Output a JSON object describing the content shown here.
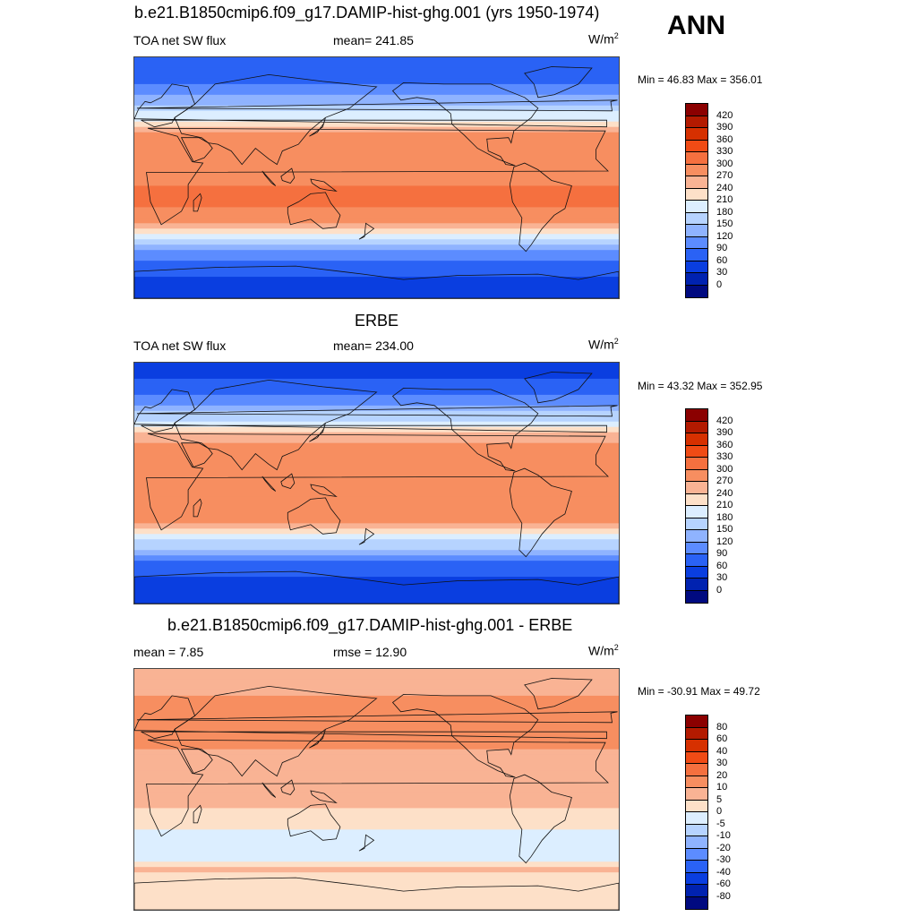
{
  "header": {
    "season": "ANN"
  },
  "panels": [
    {
      "title": "b.e21.B1850cmip6.f09_g17.DAMIP-hist-ghg.001 (yrs 1950-1974)",
      "left_text": "TOA net SW flux",
      "center_text": "mean= 241.85",
      "units": "W/m",
      "units_sup": "2",
      "minmax": "Min =  46.83 Max = 356.01",
      "colorbar": {
        "labels": [
          "420",
          "390",
          "360",
          "330",
          "300",
          "270",
          "240",
          "210",
          "180",
          "150",
          "120",
          "90",
          "60",
          "30",
          "0"
        ],
        "colors": [
          "#8b0000",
          "#b31a00",
          "#d63000",
          "#f04b15",
          "#f5703f",
          "#f78e60",
          "#f9b394",
          "#fde0c8",
          "#dceeff",
          "#b6d3ff",
          "#8fb3ff",
          "#5c8cff",
          "#2a62f5",
          "#0a3ee0",
          "#0022b0",
          "#000a80"
        ]
      }
    },
    {
      "title": "ERBE",
      "left_text": "TOA net SW flux",
      "center_text": "mean= 234.00",
      "units": "W/m",
      "units_sup": "2",
      "minmax": "Min =  43.32 Max = 352.95",
      "colorbar": {
        "labels": [
          "420",
          "390",
          "360",
          "330",
          "300",
          "270",
          "240",
          "210",
          "180",
          "150",
          "120",
          "90",
          "60",
          "30",
          "0"
        ],
        "colors": [
          "#8b0000",
          "#b31a00",
          "#d63000",
          "#f04b15",
          "#f5703f",
          "#f78e60",
          "#f9b394",
          "#fde0c8",
          "#dceeff",
          "#b6d3ff",
          "#8fb3ff",
          "#5c8cff",
          "#2a62f5",
          "#0a3ee0",
          "#0022b0",
          "#000a80"
        ]
      }
    },
    {
      "title": "b.e21.B1850cmip6.f09_g17.DAMIP-hist-ghg.001 - ERBE",
      "left_text": "mean =   7.85",
      "center_text": "rmse =  12.90",
      "units": "W/m",
      "units_sup": "2",
      "minmax": "Min = -30.91 Max =  49.72",
      "colorbar": {
        "labels": [
          "80",
          "60",
          "40",
          "30",
          "20",
          "10",
          "5",
          "0",
          "-5",
          "-10",
          "-20",
          "-30",
          "-40",
          "-60",
          "-80"
        ],
        "colors": [
          "#8b0000",
          "#b31a00",
          "#d63000",
          "#f04b15",
          "#f5703f",
          "#f78e60",
          "#f9b394",
          "#fde0c8",
          "#dceeff",
          "#b6d3ff",
          "#8fb3ff",
          "#5c8cff",
          "#2a62f5",
          "#0a3ee0",
          "#0022b0",
          "#000a80"
        ]
      }
    }
  ],
  "chart_data": [
    {
      "type": "heatmap",
      "title": "b.e21.B1850cmip6.f09_g17.DAMIP-hist-ghg.001 (yrs 1950-1974)",
      "variable": "TOA net SW flux",
      "mean": 241.85,
      "min": 46.83,
      "max": 356.01,
      "levels": [
        0,
        30,
        60,
        90,
        120,
        150,
        180,
        210,
        240,
        270,
        300,
        330,
        360,
        390,
        420
      ],
      "lat_band_values": [
        {
          "lat": 80,
          "value": 60
        },
        {
          "lat": 60,
          "value": 120
        },
        {
          "lat": 45,
          "value": 200
        },
        {
          "lat": 30,
          "value": 290
        },
        {
          "lat": 15,
          "value": 300
        },
        {
          "lat": 0,
          "value": 290
        },
        {
          "lat": -15,
          "value": 310
        },
        {
          "lat": -30,
          "value": 290
        },
        {
          "lat": -45,
          "value": 180
        },
        {
          "lat": -60,
          "value": 90
        },
        {
          "lat": -80,
          "value": 40
        }
      ]
    },
    {
      "type": "heatmap",
      "title": "ERBE",
      "variable": "TOA net SW flux",
      "mean": 234.0,
      "min": 43.32,
      "max": 352.95,
      "levels": [
        0,
        30,
        60,
        90,
        120,
        150,
        180,
        210,
        240,
        270,
        300,
        330,
        360,
        390,
        420
      ],
      "lat_band_values": [
        {
          "lat": 80,
          "value": 50
        },
        {
          "lat": 60,
          "value": 110
        },
        {
          "lat": 45,
          "value": 190
        },
        {
          "lat": 30,
          "value": 280
        },
        {
          "lat": 15,
          "value": 300
        },
        {
          "lat": 0,
          "value": 280
        },
        {
          "lat": -15,
          "value": 300
        },
        {
          "lat": -30,
          "value": 280
        },
        {
          "lat": -45,
          "value": 170
        },
        {
          "lat": -60,
          "value": 80
        },
        {
          "lat": -80,
          "value": 40
        }
      ]
    },
    {
      "type": "heatmap",
      "title": "b.e21.B1850cmip6.f09_g17.DAMIP-hist-ghg.001 - ERBE",
      "mean": 7.85,
      "rmse": 12.9,
      "min": -30.91,
      "max": 49.72,
      "levels": [
        -80,
        -60,
        -40,
        -30,
        -20,
        -10,
        -5,
        0,
        5,
        10,
        20,
        30,
        40,
        60,
        80
      ],
      "lat_band_values": [
        {
          "lat": 80,
          "value": 5
        },
        {
          "lat": 60,
          "value": 15
        },
        {
          "lat": 45,
          "value": 10
        },
        {
          "lat": 30,
          "value": 10
        },
        {
          "lat": 15,
          "value": 5
        },
        {
          "lat": 0,
          "value": 5
        },
        {
          "lat": -15,
          "value": 5
        },
        {
          "lat": -30,
          "value": 0
        },
        {
          "lat": -45,
          "value": -5
        },
        {
          "lat": -60,
          "value": 5
        },
        {
          "lat": -80,
          "value": 0
        }
      ]
    }
  ]
}
